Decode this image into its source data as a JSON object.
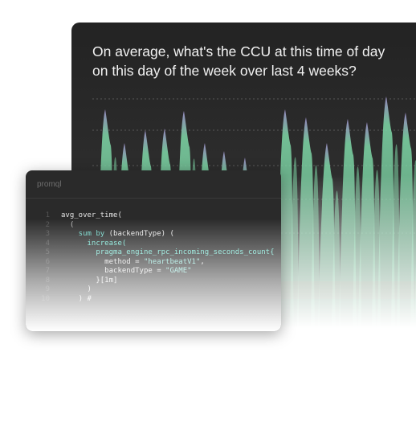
{
  "chart_panel": {
    "question": "On average, what's the CCU at this time of day on this day of the week over last 4 weeks?",
    "colors": {
      "area_green": "#7fd9a8",
      "peak_purple": "#a796d6",
      "gridline": "#9a9a9a"
    }
  },
  "code_panel": {
    "language_label": "promql",
    "lines": [
      {
        "n": "1",
        "tokens": [
          {
            "t": "avg_over_time(",
            "c": "plain"
          }
        ]
      },
      {
        "n": "2",
        "tokens": [
          {
            "t": "  (",
            "c": "punct"
          }
        ]
      },
      {
        "n": "3",
        "tokens": [
          {
            "t": "    sum by ",
            "c": "kw"
          },
          {
            "t": "(backendType) (",
            "c": "plain"
          }
        ]
      },
      {
        "n": "4",
        "tokens": [
          {
            "t": "      increase(",
            "c": "fn"
          }
        ]
      },
      {
        "n": "5",
        "tokens": [
          {
            "t": "        pragma_engine_rpc_incoming_seconds_count{",
            "c": "fn"
          }
        ]
      },
      {
        "n": "6",
        "tokens": [
          {
            "t": "          method = ",
            "c": "plain"
          },
          {
            "t": "\"heartbeatV1\"",
            "c": "str"
          },
          {
            "t": ",",
            "c": "plain"
          }
        ]
      },
      {
        "n": "7",
        "tokens": [
          {
            "t": "          backendType = ",
            "c": "plain"
          },
          {
            "t": "\"GAME\"",
            "c": "str"
          }
        ]
      },
      {
        "n": "8",
        "tokens": [
          {
            "t": "        }[1m]",
            "c": "plain"
          }
        ]
      },
      {
        "n": "9",
        "tokens": [
          {
            "t": "      )",
            "c": "plain"
          }
        ]
      },
      {
        "n": "10",
        "tokens": [
          {
            "t": "    ) #",
            "c": "plain"
          }
        ]
      }
    ]
  }
}
